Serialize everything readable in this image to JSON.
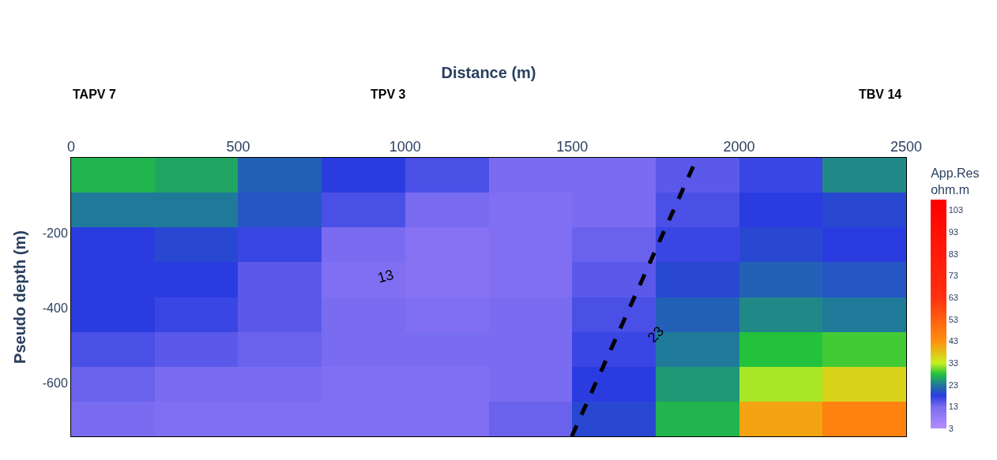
{
  "chart_data": {
    "type": "heatmap",
    "xlabel": "Distance (m)",
    "ylabel": "Pseudo depth (m)",
    "clabel": "App.Res\nohm.m",
    "x": [
      125,
      375,
      625,
      875,
      1125,
      1375,
      1625,
      1875,
      2125,
      2375
    ],
    "cells": [
      [
        27,
        26,
        21,
        18,
        16,
        13,
        13,
        15,
        17,
        24
      ],
      [
        23,
        23,
        20,
        16,
        13,
        12,
        13,
        16,
        18,
        19
      ],
      [
        18,
        19,
        17,
        13,
        11,
        12,
        14,
        17,
        19,
        18
      ],
      [
        18,
        18,
        15,
        12,
        11,
        12,
        15,
        19,
        21,
        20
      ],
      [
        18,
        17,
        15,
        13,
        12,
        13,
        16,
        21,
        24,
        23
      ],
      [
        16,
        15,
        14,
        13,
        13,
        13,
        17,
        23,
        28,
        29
      ],
      [
        14,
        13,
        13,
        12,
        12,
        13,
        18,
        25,
        32,
        36
      ],
      [
        13,
        12,
        12,
        12,
        12,
        14,
        19,
        27,
        41,
        46
      ]
    ],
    "xlim": [
      0,
      2500
    ],
    "xticks": [
      0,
      500,
      1000,
      1500,
      2000,
      2500
    ],
    "ylim": [
      -742,
      0
    ],
    "yticks": [
      -200,
      -400,
      -600
    ],
    "clim": [
      3,
      108
    ],
    "cticks": [
      3,
      13,
      23,
      33,
      43,
      53,
      63,
      73,
      83,
      93,
      103
    ],
    "series": [
      {
        "type": "line",
        "x": [
          1499,
          1874
        ],
        "values": [
          -742,
          0
        ],
        "color": "#000000",
        "line_style": "dashed"
      }
    ],
    "annotations": [
      "TAPV 7",
      "TPV 3",
      "TBV 14",
      "13",
      "23"
    ]
  }
}
